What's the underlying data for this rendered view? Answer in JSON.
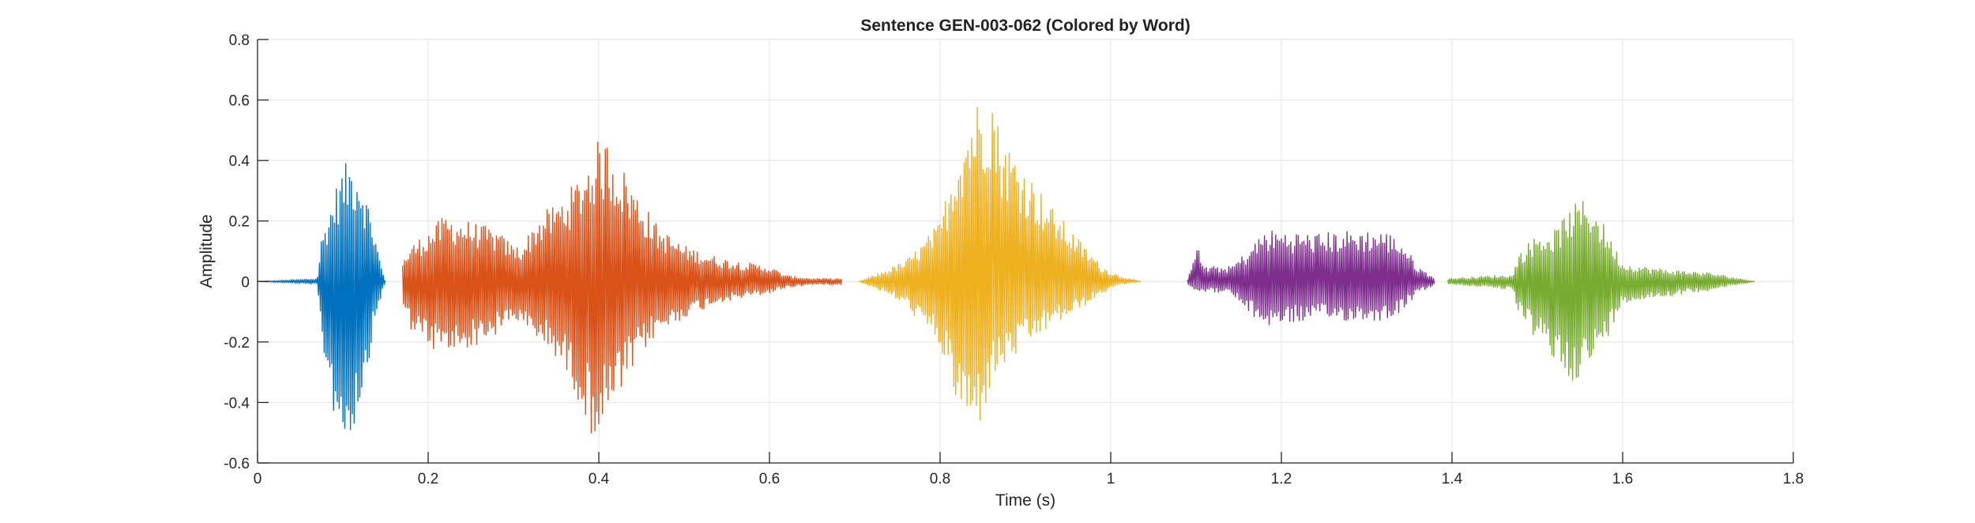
{
  "chart_data": {
    "type": "line",
    "title": "Sentence GEN-003-062 (Colored by Word)",
    "xlabel": "Time (s)",
    "ylabel": "Amplitude",
    "xlim": [
      0,
      1.8
    ],
    "ylim": [
      -0.6,
      0.8
    ],
    "xticks": [
      0,
      0.2,
      0.4,
      0.6,
      0.8,
      1,
      1.2,
      1.4,
      1.6,
      1.8
    ],
    "xtick_labels": [
      "0",
      "0.2",
      "0.4",
      "0.6",
      "0.8",
      "1",
      "1.2",
      "1.4",
      "1.6",
      "1.8"
    ],
    "yticks": [
      -0.6,
      -0.4,
      -0.2,
      0,
      0.2,
      0.4,
      0.6,
      0.8
    ],
    "ytick_labels": [
      "-0.6",
      "-0.4",
      "-0.2",
      "0",
      "0.2",
      "0.4",
      "0.6",
      "0.8"
    ],
    "grid": true,
    "legend": "none",
    "series": [
      {
        "color": "#0072BD",
        "t_start": 0.0,
        "t_end": 0.15,
        "envelope": [
          [
            0.0,
            0.0
          ],
          [
            0.07,
            0.01
          ],
          [
            0.075,
            0.15
          ],
          [
            0.09,
            0.3
          ],
          [
            0.1,
            0.38
          ],
          [
            0.11,
            0.41
          ],
          [
            0.12,
            0.38
          ],
          [
            0.135,
            0.2
          ],
          [
            0.145,
            0.05
          ],
          [
            0.15,
            0.0
          ]
        ],
        "min_envelope": [
          [
            0.0,
            0.0
          ],
          [
            0.07,
            -0.01
          ],
          [
            0.075,
            -0.2
          ],
          [
            0.09,
            -0.45
          ],
          [
            0.1,
            -0.54
          ],
          [
            0.11,
            -0.52
          ],
          [
            0.125,
            -0.35
          ],
          [
            0.14,
            -0.1
          ],
          [
            0.15,
            0.0
          ]
        ]
      },
      {
        "color": "#D95319",
        "t_start": 0.17,
        "t_end": 0.685,
        "envelope": [
          [
            0.17,
            0.07
          ],
          [
            0.18,
            0.12
          ],
          [
            0.2,
            0.17
          ],
          [
            0.22,
            0.22
          ],
          [
            0.25,
            0.2
          ],
          [
            0.28,
            0.17
          ],
          [
            0.3,
            0.12
          ],
          [
            0.31,
            0.12
          ],
          [
            0.33,
            0.22
          ],
          [
            0.35,
            0.26
          ],
          [
            0.37,
            0.32
          ],
          [
            0.39,
            0.42
          ],
          [
            0.4,
            0.47
          ],
          [
            0.41,
            0.47
          ],
          [
            0.42,
            0.42
          ],
          [
            0.44,
            0.32
          ],
          [
            0.47,
            0.18
          ],
          [
            0.5,
            0.12
          ],
          [
            0.54,
            0.08
          ],
          [
            0.58,
            0.06
          ],
          [
            0.6,
            0.05
          ],
          [
            0.62,
            0.02
          ],
          [
            0.65,
            0.01
          ],
          [
            0.685,
            0.01
          ]
        ],
        "min_envelope": [
          [
            0.17,
            -0.1
          ],
          [
            0.18,
            -0.16
          ],
          [
            0.2,
            -0.22
          ],
          [
            0.22,
            -0.25
          ],
          [
            0.25,
            -0.22
          ],
          [
            0.28,
            -0.18
          ],
          [
            0.3,
            -0.12
          ],
          [
            0.31,
            -0.16
          ],
          [
            0.33,
            -0.2
          ],
          [
            0.35,
            -0.25
          ],
          [
            0.37,
            -0.35
          ],
          [
            0.39,
            -0.5
          ],
          [
            0.4,
            -0.52
          ],
          [
            0.41,
            -0.47
          ],
          [
            0.43,
            -0.35
          ],
          [
            0.46,
            -0.2
          ],
          [
            0.5,
            -0.12
          ],
          [
            0.54,
            -0.07
          ],
          [
            0.58,
            -0.05
          ],
          [
            0.6,
            -0.04
          ],
          [
            0.62,
            -0.02
          ],
          [
            0.65,
            -0.01
          ],
          [
            0.685,
            -0.01
          ]
        ]
      },
      {
        "color": "#EDB120",
        "t_start": 0.705,
        "t_end": 1.035,
        "envelope": [
          [
            0.705,
            0.0
          ],
          [
            0.73,
            0.03
          ],
          [
            0.76,
            0.07
          ],
          [
            0.78,
            0.13
          ],
          [
            0.8,
            0.2
          ],
          [
            0.82,
            0.45
          ],
          [
            0.84,
            0.6
          ],
          [
            0.85,
            0.62
          ],
          [
            0.86,
            0.67
          ],
          [
            0.87,
            0.5
          ],
          [
            0.9,
            0.38
          ],
          [
            0.93,
            0.25
          ],
          [
            0.96,
            0.15
          ],
          [
            0.99,
            0.05
          ],
          [
            1.01,
            0.02
          ],
          [
            1.035,
            0.0
          ]
        ],
        "min_envelope": [
          [
            0.705,
            0.0
          ],
          [
            0.73,
            -0.03
          ],
          [
            0.76,
            -0.08
          ],
          [
            0.78,
            -0.15
          ],
          [
            0.8,
            -0.22
          ],
          [
            0.82,
            -0.42
          ],
          [
            0.84,
            -0.52
          ],
          [
            0.85,
            -0.45
          ],
          [
            0.86,
            -0.35
          ],
          [
            0.87,
            -0.3
          ],
          [
            0.9,
            -0.22
          ],
          [
            0.93,
            -0.15
          ],
          [
            0.96,
            -0.1
          ],
          [
            0.99,
            -0.04
          ],
          [
            1.01,
            -0.01
          ],
          [
            1.035,
            0.0
          ]
        ]
      },
      {
        "color": "#7E2F8E",
        "t_start": 1.09,
        "t_end": 1.38,
        "envelope": [
          [
            1.09,
            0.01
          ],
          [
            1.1,
            0.13
          ],
          [
            1.11,
            0.05
          ],
          [
            1.14,
            0.05
          ],
          [
            1.16,
            0.1
          ],
          [
            1.18,
            0.17
          ],
          [
            1.2,
            0.17
          ],
          [
            1.24,
            0.16
          ],
          [
            1.28,
            0.17
          ],
          [
            1.32,
            0.17
          ],
          [
            1.34,
            0.14
          ],
          [
            1.36,
            0.05
          ],
          [
            1.38,
            0.01
          ]
        ],
        "min_envelope": [
          [
            1.09,
            -0.01
          ],
          [
            1.1,
            -0.03
          ],
          [
            1.14,
            -0.04
          ],
          [
            1.16,
            -0.1
          ],
          [
            1.18,
            -0.15
          ],
          [
            1.2,
            -0.14
          ],
          [
            1.24,
            -0.13
          ],
          [
            1.28,
            -0.13
          ],
          [
            1.32,
            -0.13
          ],
          [
            1.34,
            -0.1
          ],
          [
            1.36,
            -0.04
          ],
          [
            1.38,
            -0.01
          ]
        ]
      },
      {
        "color": "#77AC30",
        "t_start": 1.395,
        "t_end": 1.755,
        "envelope": [
          [
            1.395,
            0.01
          ],
          [
            1.45,
            0.02
          ],
          [
            1.47,
            0.02
          ],
          [
            1.48,
            0.1
          ],
          [
            1.5,
            0.16
          ],
          [
            1.52,
            0.17
          ],
          [
            1.54,
            0.25
          ],
          [
            1.56,
            0.28
          ],
          [
            1.58,
            0.18
          ],
          [
            1.6,
            0.06
          ],
          [
            1.65,
            0.04
          ],
          [
            1.7,
            0.03
          ],
          [
            1.755,
            0.0
          ]
        ],
        "min_envelope": [
          [
            1.395,
            -0.01
          ],
          [
            1.45,
            -0.02
          ],
          [
            1.47,
            -0.03
          ],
          [
            1.48,
            -0.12
          ],
          [
            1.5,
            -0.2
          ],
          [
            1.52,
            -0.27
          ],
          [
            1.54,
            -0.33
          ],
          [
            1.56,
            -0.3
          ],
          [
            1.58,
            -0.2
          ],
          [
            1.6,
            -0.07
          ],
          [
            1.65,
            -0.05
          ],
          [
            1.7,
            -0.03
          ],
          [
            1.755,
            0.0
          ]
        ]
      }
    ]
  }
}
